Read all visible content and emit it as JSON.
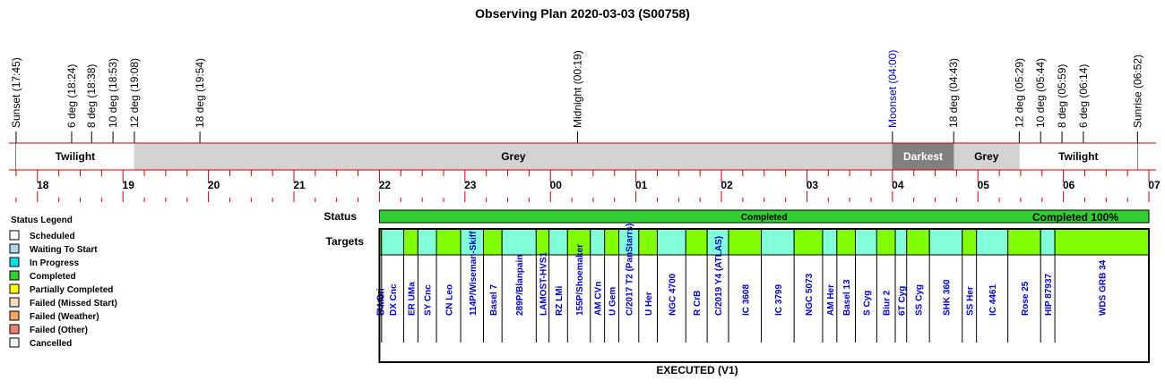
{
  "title": "Observing Plan 2020-03-03 (S00758)",
  "chart_data": {
    "type": "timeline",
    "title": "Observing Plan 2020-03-03 (S00758)",
    "time_range": [
      "17:40",
      "07:05"
    ],
    "events": [
      {
        "label": "Sunset (17:45)",
        "time": "17:45",
        "color": "#000000"
      },
      {
        "label": "6 deg (18:24)",
        "time": "18:24",
        "color": "#000000"
      },
      {
        "label": "8 deg (18:38)",
        "time": "18:38",
        "color": "#000000"
      },
      {
        "label": "10 deg (18:53)",
        "time": "18:53",
        "color": "#000000"
      },
      {
        "label": "12 deg (19:08)",
        "time": "19:08",
        "color": "#000000"
      },
      {
        "label": "18 deg (19:54)",
        "time": "19:54",
        "color": "#000000"
      },
      {
        "label": "Midnight (00:19)",
        "time": "00:19",
        "color": "#000000"
      },
      {
        "label": "Moonset (04:00)",
        "time": "04:00",
        "color": "#0000cc"
      },
      {
        "label": "18 deg (04:43)",
        "time": "04:43",
        "color": "#000000"
      },
      {
        "label": "12 deg (05:29)",
        "time": "05:29",
        "color": "#000000"
      },
      {
        "label": "10 deg (05:44)",
        "time": "05:44",
        "color": "#000000"
      },
      {
        "label": "8 deg (05:59)",
        "time": "05:59",
        "color": "#000000"
      },
      {
        "label": "6 deg (06:14)",
        "time": "06:14",
        "color": "#000000"
      },
      {
        "label": "Sunrise (06:52)",
        "time": "06:52",
        "color": "#000000"
      }
    ],
    "periods": [
      {
        "label": "Twilight",
        "start": "17:45",
        "end": "19:08",
        "fill": "#ffffff",
        "text_color": "#000000"
      },
      {
        "label": "Grey",
        "start": "19:08",
        "end": "04:00",
        "fill": "#d3d3d3",
        "text_color": "#000000"
      },
      {
        "label": "Darkest",
        "start": "04:00",
        "end": "04:43",
        "fill": "#808080",
        "text_color": "#ffffff"
      },
      {
        "label": "Grey",
        "start": "04:43",
        "end": "05:29",
        "fill": "#d3d3d3",
        "text_color": "#000000"
      },
      {
        "label": "Twilight",
        "start": "05:29",
        "end": "06:52",
        "fill": "#ffffff",
        "text_color": "#000000"
      }
    ],
    "hour_labels": [
      "18",
      "19",
      "20",
      "21",
      "22",
      "23",
      "00",
      "01",
      "02",
      "03",
      "04",
      "05",
      "06",
      "07"
    ],
    "status": {
      "row_label": "Status",
      "label": "Completed",
      "start": "22:00",
      "end": "07:00",
      "summary": "Completed 100%"
    },
    "targets_row_label": "Targets",
    "targets": [
      {
        "name": "FU Ori",
        "start": "22:00",
        "end": "22:00:10"
      },
      {
        "name": "U Mon",
        "start": "22:00:10",
        "end": "22:01:30"
      },
      {
        "name": "DX Cnc",
        "start": "22:01:30",
        "end": "22:17"
      },
      {
        "name": "ER UMa",
        "start": "22:17",
        "end": "22:27"
      },
      {
        "name": "SY Cnc",
        "start": "22:27",
        "end": "22:40"
      },
      {
        "name": "CN Leo",
        "start": "22:40",
        "end": "22:57"
      },
      {
        "name": "114P/Wiseman-Skiff",
        "start": "22:57",
        "end": "23:13"
      },
      {
        "name": "Basel 7",
        "start": "23:13",
        "end": "23:26"
      },
      {
        "name": "289P/Blanpain",
        "start": "23:26",
        "end": "23:50"
      },
      {
        "name": "LAMOST-HVS1",
        "start": "23:50",
        "end": "23:59"
      },
      {
        "name": "RZ LMi",
        "start": "23:59",
        "end": "00:12"
      },
      {
        "name": "155P/Shoemaker",
        "start": "00:12",
        "end": "00:28"
      },
      {
        "name": "AM CVn",
        "start": "00:28",
        "end": "00:38"
      },
      {
        "name": "U Gem",
        "start": "00:38",
        "end": "00:48"
      },
      {
        "name": "C/2017 T2 (PanStarrs)",
        "start": "00:48",
        "end": "01:02"
      },
      {
        "name": "U Her",
        "start": "01:02",
        "end": "01:15"
      },
      {
        "name": "NGC 4700",
        "start": "01:15",
        "end": "01:35"
      },
      {
        "name": "R CrB",
        "start": "01:35",
        "end": "01:50"
      },
      {
        "name": "C/2019 Y4 (ATLAS)",
        "start": "01:50",
        "end": "02:05"
      },
      {
        "name": "IC 3608",
        "start": "02:05",
        "end": "02:28"
      },
      {
        "name": "IC 3799",
        "start": "02:28",
        "end": "02:51"
      },
      {
        "name": "NGC 5073",
        "start": "02:51",
        "end": "03:11"
      },
      {
        "name": "AM Her",
        "start": "03:11",
        "end": "03:21"
      },
      {
        "name": "Basel 13",
        "start": "03:21",
        "end": "03:34"
      },
      {
        "name": "S Cyg",
        "start": "03:34",
        "end": "03:49"
      },
      {
        "name": "Biur 2",
        "start": "03:49",
        "end": "04:02"
      },
      {
        "name": "6T Cyg",
        "start": "04:02",
        "end": "04:10"
      },
      {
        "name": "SS Cyg",
        "start": "04:10",
        "end": "04:26"
      },
      {
        "name": "SHK 360",
        "start": "04:26",
        "end": "04:49"
      },
      {
        "name": "SS Her",
        "start": "04:49",
        "end": "04:59"
      },
      {
        "name": "IC 4461",
        "start": "04:59",
        "end": "05:21"
      },
      {
        "name": "Rose 25",
        "start": "05:21",
        "end": "05:44"
      },
      {
        "name": "HIP 87937",
        "start": "05:44",
        "end": "05:54"
      },
      {
        "name": "WDS GRB 34",
        "start": "05:54",
        "end": "07:00"
      }
    ],
    "target_fill_colors": [
      "#80ffd8",
      "#80ff00"
    ],
    "footer": "EXECUTED (V1)"
  },
  "legend": {
    "title": "Status Legend",
    "items": [
      {
        "label": "Scheduled",
        "color": "#ffffff"
      },
      {
        "label": "Waiting To Start",
        "color": "#add8e6"
      },
      {
        "label": "In Progress",
        "color": "#00e5e5"
      },
      {
        "label": "Completed",
        "color": "#32cd32"
      },
      {
        "label": "Partially Completed",
        "color": "#ffff00"
      },
      {
        "label": "Failed (Missed Start)",
        "color": "#ffdab9"
      },
      {
        "label": "Failed (Weather)",
        "color": "#f4a460"
      },
      {
        "label": "Failed (Other)",
        "color": "#f08080"
      },
      {
        "label": "Cancelled",
        "color": "#f5f5f5"
      }
    ]
  }
}
